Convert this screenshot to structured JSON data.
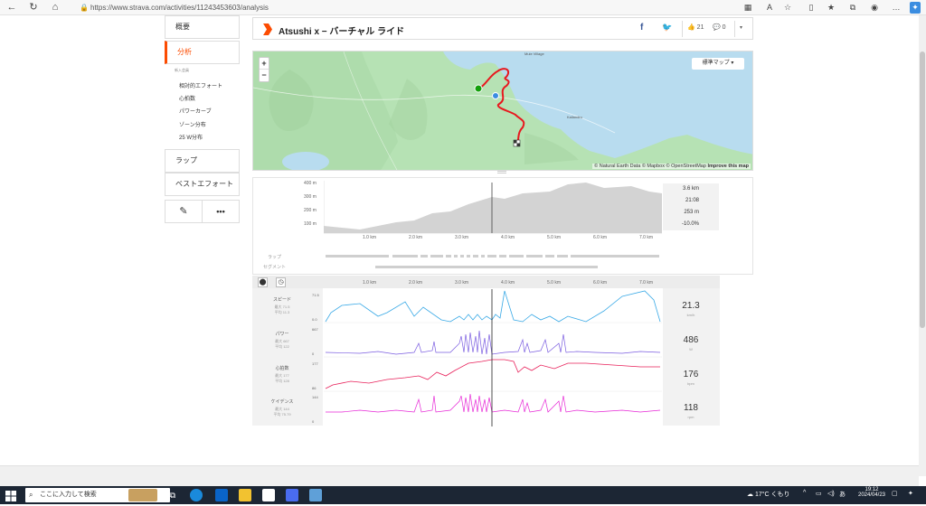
{
  "browser": {
    "url": "https://www.strava.com/activities/11243453603/analysis"
  },
  "sidebar": {
    "overview": "概要",
    "analysis": "分析",
    "subheading": "新入会員",
    "items": [
      "相対的エフォート",
      "心拍数",
      "パワーカーブ",
      "ゾーン分布",
      "25 W分布"
    ],
    "laps": "ラップ",
    "best_efforts": "ベストエフォート"
  },
  "header": {
    "title": "Atsushi x − バーチャル ライド",
    "kudos": "21",
    "comments": "0"
  },
  "map": {
    "zoom_in": "+",
    "zoom_out": "−",
    "style_button": "標準マップ ▾",
    "place1": "Mule Village",
    "place2": "Kallandru",
    "attribution_natural": "© Natural Earth Data",
    "attribution_mapbox": "© Mapbox",
    "attribution_osm": "© OpenStreetMap",
    "improve": "Improve this map",
    "colors": {
      "water": "#b8dcef",
      "land": "#b6e2b4",
      "route": "#e8181e"
    }
  },
  "elevation": {
    "y_ticks": [
      "400 m",
      "300 m",
      "200 m",
      "100 m"
    ],
    "stats": [
      "3.6 km",
      "21:08",
      "253 m",
      "-10.0%"
    ]
  },
  "x_ticks": [
    "1.0 km",
    "2.0 km",
    "3.0 km",
    "4.0 km",
    "5.0 km",
    "6.0 km",
    "7.0 km"
  ],
  "rows": {
    "lap": "ラップ",
    "segment": "セグメント"
  },
  "metrics": [
    {
      "label": "スピード",
      "max": "最大 71.5",
      "avg": "平均 11.3",
      "top": "71.5",
      "bottom": "0.0",
      "value": "21.3",
      "unit": "km/h",
      "color": "#39a9e6"
    },
    {
      "label": "パワー",
      "max": "最大 667",
      "avg": "平均 122",
      "top": "667",
      "bottom": "0",
      "value": "486",
      "unit": "W",
      "color": "#7a5ce0"
    },
    {
      "label": "心拍数",
      "max": "最大 177",
      "avg": "平均 128",
      "top": "177",
      "bottom": "86",
      "value": "176",
      "unit": "bpm",
      "color": "#e8205a"
    },
    {
      "label": "ケイデンス",
      "max": "最大 144",
      "avg": "平均 75.79",
      "top": "144",
      "bottom": "0",
      "value": "118",
      "unit": "rpm",
      "color": "#e626d6"
    }
  ],
  "taskbar": {
    "search_placeholder": "ここに入力して検索",
    "weather": "17°C くもり",
    "ime": "あ",
    "time": "19:12",
    "date": "2024/04/23"
  }
}
